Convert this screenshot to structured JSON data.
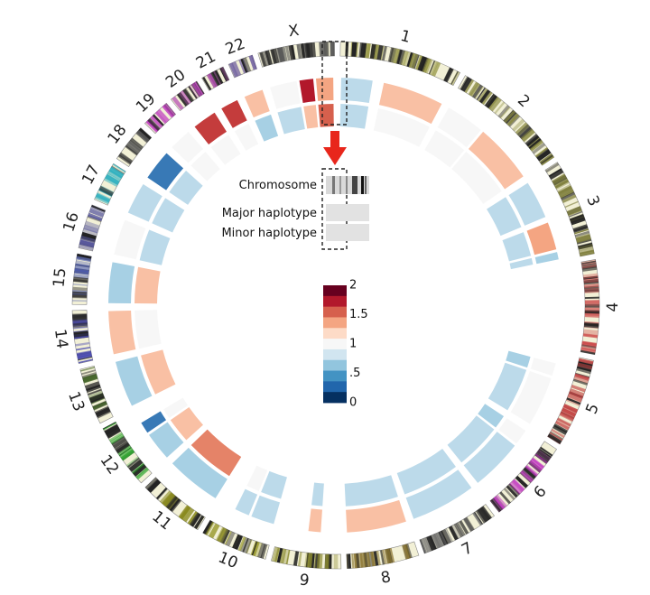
{
  "chart_data": {
    "type": "circos",
    "description_labels": {
      "chromosome": "Chromosome",
      "major": "Major haplotype",
      "minor": "Minor haplotype"
    },
    "colorbar": {
      "ticks": [
        "2",
        "1.5",
        "1",
        ".5",
        "0"
      ],
      "tick_values": [
        2,
        1.5,
        1,
        0.5,
        0
      ],
      "range": [
        0,
        2
      ],
      "colors": [
        "#67001f",
        "#b2182b",
        "#d6604d",
        "#f4a582",
        "#fddbc7",
        "#f7f7f7",
        "#d1e5f0",
        "#92c5de",
        "#4393c3",
        "#2166ac",
        "#053061"
      ]
    },
    "chromosomes": [
      {
        "name": "1",
        "length": 249,
        "band_color": "#9a9a4a"
      },
      {
        "name": "2",
        "length": 243,
        "band_color": "#8a8a42"
      },
      {
        "name": "3",
        "length": 198,
        "band_color": "#7d7d3a"
      },
      {
        "name": "4",
        "length": 191,
        "band_color": "#cc4d4d"
      },
      {
        "name": "5",
        "length": 181,
        "band_color": "#c24444"
      },
      {
        "name": "6",
        "length": 171,
        "band_color": "#c23ac2"
      },
      {
        "name": "7",
        "length": 159,
        "band_color": "#6b6b6b"
      },
      {
        "name": "8",
        "length": 146,
        "band_color": "#8a7530"
      },
      {
        "name": "9",
        "length": 141,
        "band_color": "#8a8a30"
      },
      {
        "name": "10",
        "length": 136,
        "band_color": "#9a9a30"
      },
      {
        "name": "11",
        "length": 135,
        "band_color": "#8a8a20"
      },
      {
        "name": "12",
        "length": 133,
        "band_color": "#2ea32e"
      },
      {
        "name": "13",
        "length": 115,
        "band_color": "#4a6b2e"
      },
      {
        "name": "14",
        "length": 107,
        "band_color": "#4a4ab0"
      },
      {
        "name": "15",
        "length": 102,
        "band_color": "#4a5ab0"
      },
      {
        "name": "16",
        "length": 90,
        "band_color": "#5a5aa0"
      },
      {
        "name": "17",
        "length": 81,
        "band_color": "#30b0c0"
      },
      {
        "name": "18",
        "length": 78,
        "band_color": "#555555"
      },
      {
        "name": "19",
        "length": 59,
        "band_color": "#c040c0"
      },
      {
        "name": "20",
        "length": 63,
        "band_color": "#b040b0"
      },
      {
        "name": "21",
        "length": 48,
        "band_color": "#a040a0"
      },
      {
        "name": "22",
        "length": 51,
        "band_color": "#7060a0"
      },
      {
        "name": "X",
        "length": 155,
        "band_color": "#555555"
      }
    ],
    "segments": [
      {
        "chr": "1",
        "start": 0.0,
        "end": 0.32,
        "major": 0.7,
        "minor": 0.7
      },
      {
        "chr": "1",
        "start": 0.4,
        "end": 1.0,
        "major": 1.3,
        "minor": 1.0
      },
      {
        "chr": "2",
        "start": 0.0,
        "end": 0.4,
        "major": 1.0,
        "minor": 1.0
      },
      {
        "chr": "2",
        "start": 0.4,
        "end": 1.0,
        "major": 1.3,
        "minor": 1.0
      },
      {
        "chr": "3",
        "start": 0.0,
        "end": 0.48,
        "major": 0.7,
        "minor": 0.7
      },
      {
        "chr": "3",
        "start": 0.52,
        "end": 0.88,
        "major": 1.4,
        "minor": 0.7
      },
      {
        "chr": "3",
        "start": 0.88,
        "end": 1.0,
        "major": 0.6,
        "minor": 0.7
      },
      {
        "chr": "5",
        "start": 0.12,
        "end": 0.32,
        "major": 1.0,
        "minor": 0.6
      },
      {
        "chr": "5",
        "start": 0.32,
        "end": 1.0,
        "major": 1.0,
        "minor": 0.7
      },
      {
        "chr": "6",
        "start": 0.0,
        "end": 0.25,
        "major": 1.0,
        "minor": 0.6
      },
      {
        "chr": "6",
        "start": 0.25,
        "end": 1.0,
        "major": 0.7,
        "minor": 0.7
      },
      {
        "chr": "7",
        "start": 0.0,
        "end": 1.0,
        "major": 0.7,
        "minor": 0.7
      },
      {
        "chr": "8",
        "start": 0.0,
        "end": 1.0,
        "major": 1.3,
        "minor": 0.7
      },
      {
        "chr": "9",
        "start": 0.3,
        "end": 0.55,
        "major": 1.3,
        "minor": 0.7
      },
      {
        "chr": "10",
        "start": 0.0,
        "end": 0.45,
        "major": 0.7,
        "minor": 0.7
      },
      {
        "chr": "10",
        "start": 0.45,
        "end": 0.75,
        "major": 0.7,
        "minor": 1.0
      },
      {
        "chr": "11",
        "start": 0.0,
        "end": 1.0,
        "major": 0.6,
        "minor": 1.5
      },
      {
        "chr": "12",
        "start": 0.0,
        "end": 0.55,
        "major": 0.6,
        "minor": 1.3
      },
      {
        "chr": "12",
        "start": 0.55,
        "end": 0.8,
        "major": 0.3,
        "minor": 1.0
      },
      {
        "chr": "13",
        "start": 0.0,
        "end": 1.0,
        "major": 0.6,
        "minor": 1.3
      },
      {
        "chr": "14",
        "start": 0.0,
        "end": 1.0,
        "major": 1.3,
        "minor": 1.0
      },
      {
        "chr": "15",
        "start": 0.0,
        "end": 1.0,
        "major": 0.6,
        "minor": 1.3
      },
      {
        "chr": "16",
        "start": 0.0,
        "end": 1.0,
        "major": 1.0,
        "minor": 0.7
      },
      {
        "chr": "17",
        "start": 0.0,
        "end": 1.0,
        "major": 0.7,
        "minor": 0.7
      },
      {
        "chr": "18",
        "start": 0.0,
        "end": 1.0,
        "major": 0.3,
        "minor": 0.7
      },
      {
        "chr": "19",
        "start": 0.0,
        "end": 1.0,
        "major": 1.0,
        "minor": 1.0
      },
      {
        "chr": "20",
        "start": 0.0,
        "end": 1.0,
        "major": 1.7,
        "minor": 1.0
      },
      {
        "chr": "21",
        "start": 0.0,
        "end": 1.0,
        "major": 1.7,
        "minor": 1.0
      },
      {
        "chr": "22",
        "start": 0.0,
        "end": 1.0,
        "major": 1.3,
        "minor": 0.6
      },
      {
        "chr": "X",
        "start": 0.0,
        "end": 0.45,
        "major": 1.0,
        "minor": 0.7
      },
      {
        "chr": "X",
        "start": 0.45,
        "end": 0.7,
        "major": 1.8,
        "minor": 1.3
      },
      {
        "chr": "X",
        "start": 0.7,
        "end": 1.0,
        "major": 1.4,
        "minor": 1.6
      }
    ]
  }
}
